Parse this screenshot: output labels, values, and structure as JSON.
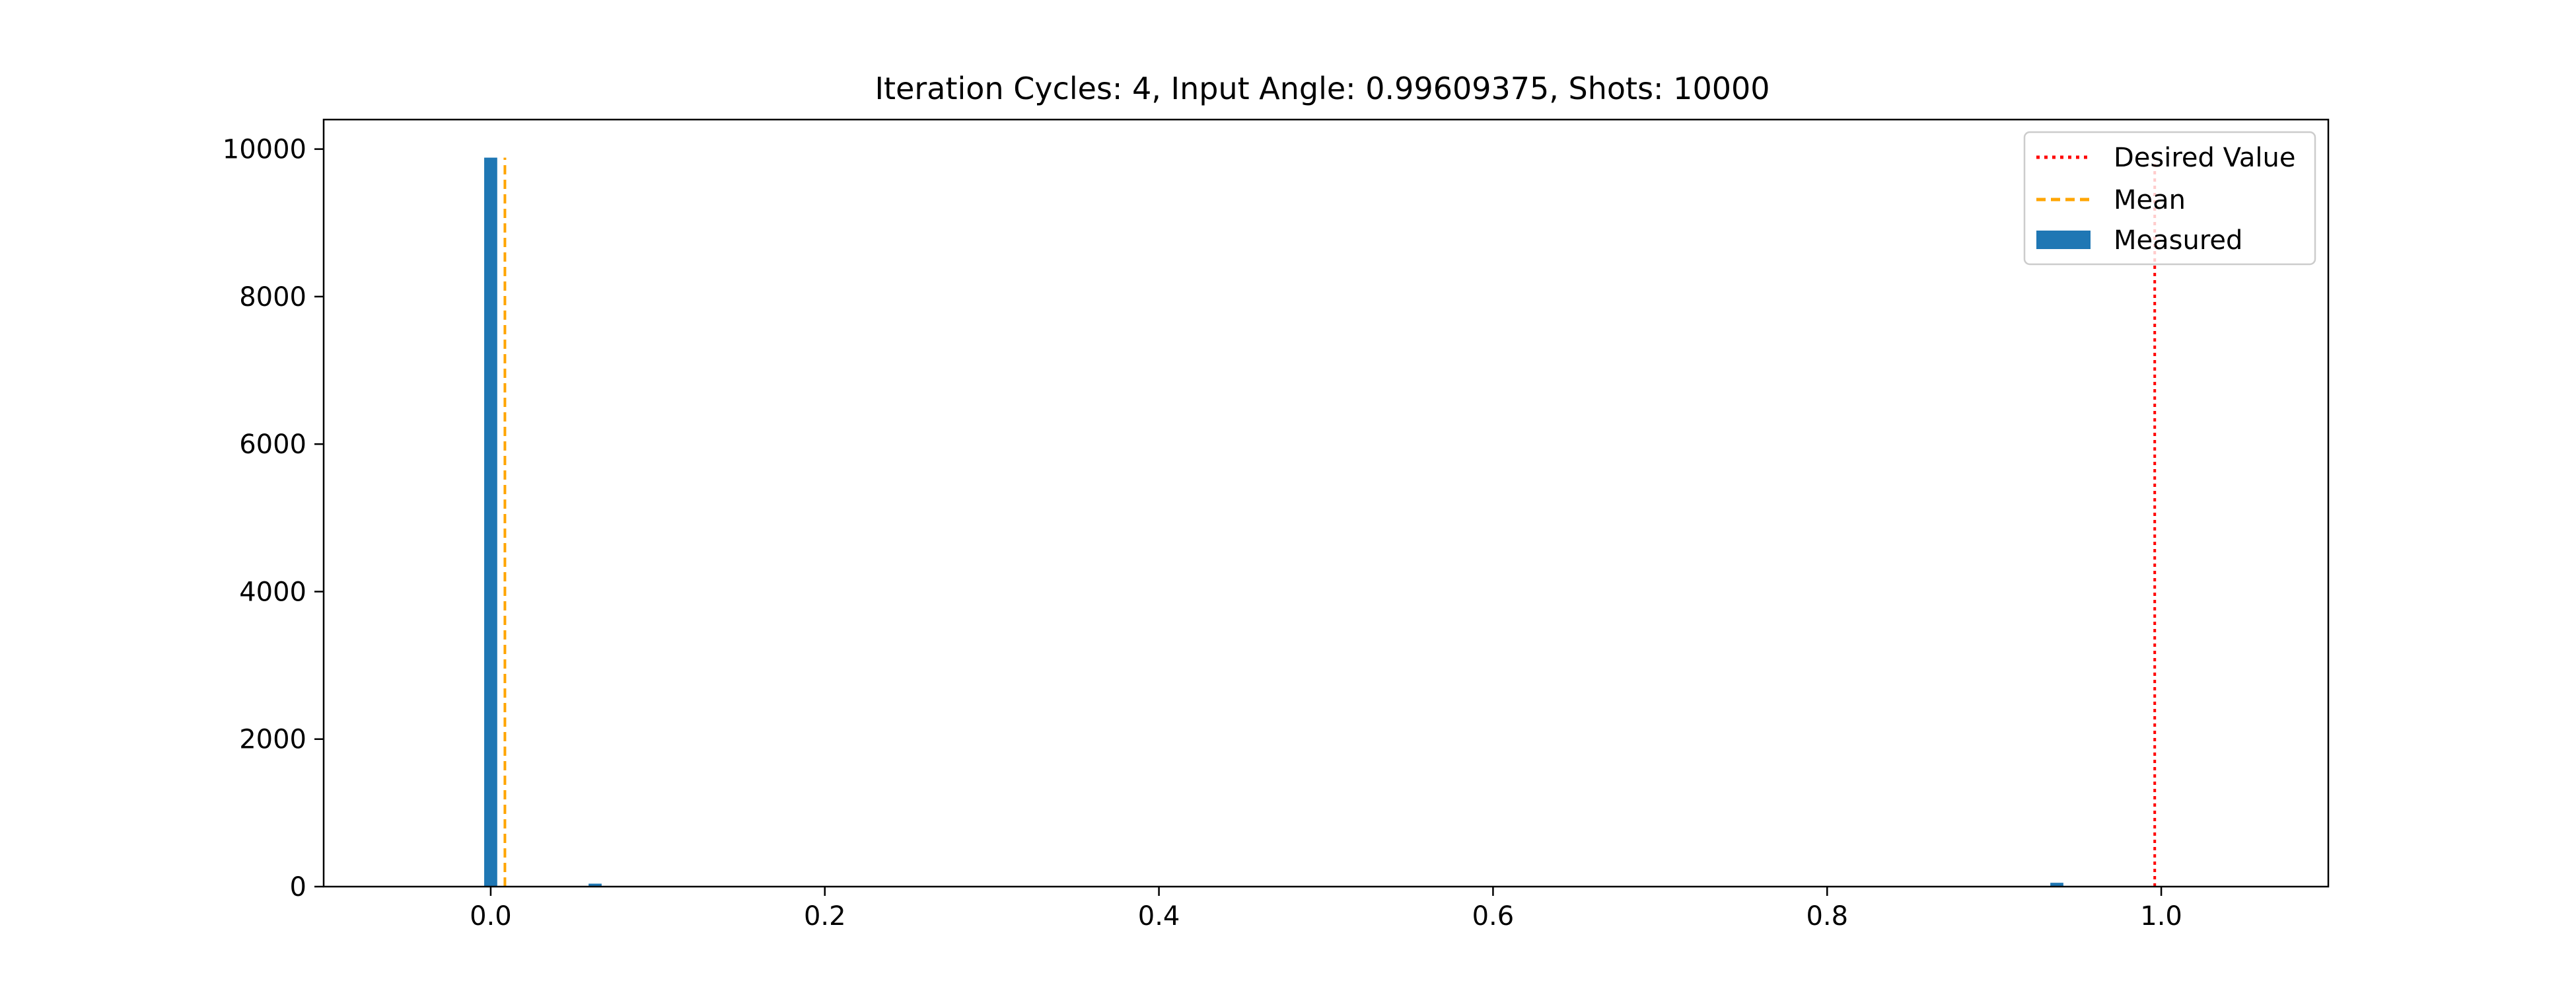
{
  "chart_data": {
    "type": "bar",
    "title": "Iteration Cycles: 4, Input Angle: 0.99609375, Shots: 10000",
    "xlabel": "",
    "ylabel": "",
    "xlim": [
      -0.1,
      1.1
    ],
    "ylim": [
      0,
      10400
    ],
    "x_ticks": [
      "0.0",
      "0.2",
      "0.4",
      "0.6",
      "0.8",
      "1.0"
    ],
    "x_tick_values": [
      0.0,
      0.2,
      0.4,
      0.6,
      0.8,
      1.0
    ],
    "y_ticks": [
      "0",
      "2000",
      "4000",
      "6000",
      "8000",
      "10000"
    ],
    "y_tick_values": [
      0,
      2000,
      4000,
      6000,
      8000,
      10000
    ],
    "grid": false,
    "legend_position": "top-right",
    "bar_width": 0.0078125,
    "series": [
      {
        "name": "Measured",
        "kind": "bar",
        "color": "#1f77b4",
        "points": [
          {
            "x": 0.0,
            "y": 9884
          },
          {
            "x": 0.0625,
            "y": 40
          },
          {
            "x": 0.9375,
            "y": 52
          },
          {
            "x": 0.875,
            "y": 8
          },
          {
            "x": 0.125,
            "y": 6
          }
        ]
      },
      {
        "name": "Mean",
        "kind": "vline",
        "color": "#ffa500",
        "style": "dashed",
        "x": 0.0085,
        "ymax": 9884
      },
      {
        "name": "Desired Value",
        "kind": "vline",
        "color": "#ff0000",
        "style": "dotted",
        "x": 0.99609375,
        "ymax": 9884
      }
    ],
    "legend": [
      "Desired Value",
      "Mean",
      "Measured"
    ]
  }
}
